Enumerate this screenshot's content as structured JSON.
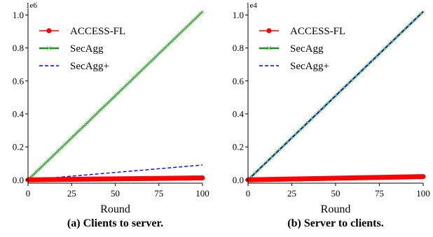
{
  "colors": {
    "accessfl": "#ff0000",
    "secagg": "#228b22",
    "secaggplus": "#0000ff"
  },
  "chart_data": [
    {
      "type": "line",
      "caption": "(a) Clients to server.",
      "xlabel": "Round",
      "ylabel": "",
      "y_multiplier": "1e6",
      "xlim": [
        0,
        100
      ],
      "ylim": [
        -0.02,
        1.04
      ],
      "xticks": [
        0,
        25,
        50,
        75,
        100
      ],
      "yticks": [
        0.0,
        0.2,
        0.4,
        0.6,
        0.8,
        1.0
      ],
      "ytick_labels": [
        "0.0",
        "0.2",
        "0.4",
        "0.6",
        "0.8",
        "1.0"
      ],
      "xtick_labels": [
        "0",
        "25",
        "50",
        "75",
        "100"
      ],
      "legend_position": "top-left",
      "grid": false,
      "series": [
        {
          "name": "ACCESS-FL",
          "x": [
            0,
            100
          ],
          "y": [
            0.0,
            0.012
          ],
          "marker": "circle",
          "style": "solid"
        },
        {
          "name": "SecAgg",
          "x": [
            0,
            100
          ],
          "y": [
            0.0,
            1.02
          ],
          "marker": "x",
          "style": "solid"
        },
        {
          "name": "SecAgg+",
          "x": [
            0,
            100
          ],
          "y": [
            0.0,
            0.09
          ],
          "marker": "none",
          "style": "dashed"
        }
      ]
    },
    {
      "type": "line",
      "caption": "(b) Server to clients.",
      "xlabel": "Round",
      "ylabel": "",
      "y_multiplier": "1e4",
      "xlim": [
        0,
        100
      ],
      "ylim": [
        -0.02,
        1.04
      ],
      "xticks": [
        0,
        25,
        50,
        75,
        100
      ],
      "yticks": [
        0.0,
        0.2,
        0.4,
        0.6,
        0.8,
        1.0
      ],
      "ytick_labels": [
        "0.0",
        "0.2",
        "0.4",
        "0.6",
        "0.8",
        "1.0"
      ],
      "xtick_labels": [
        "0",
        "25",
        "50",
        "75",
        "100"
      ],
      "legend_position": "top-left",
      "grid": false,
      "series": [
        {
          "name": "ACCESS-FL",
          "x": [
            0,
            100
          ],
          "y": [
            0.0,
            0.02
          ],
          "marker": "circle",
          "style": "solid"
        },
        {
          "name": "SecAgg",
          "x": [
            0,
            100
          ],
          "y": [
            0.0,
            1.02
          ],
          "marker": "x",
          "style": "solid"
        },
        {
          "name": "SecAgg+",
          "x": [
            0,
            100
          ],
          "y": [
            0.0,
            1.02
          ],
          "marker": "none",
          "style": "dashed"
        }
      ]
    }
  ]
}
